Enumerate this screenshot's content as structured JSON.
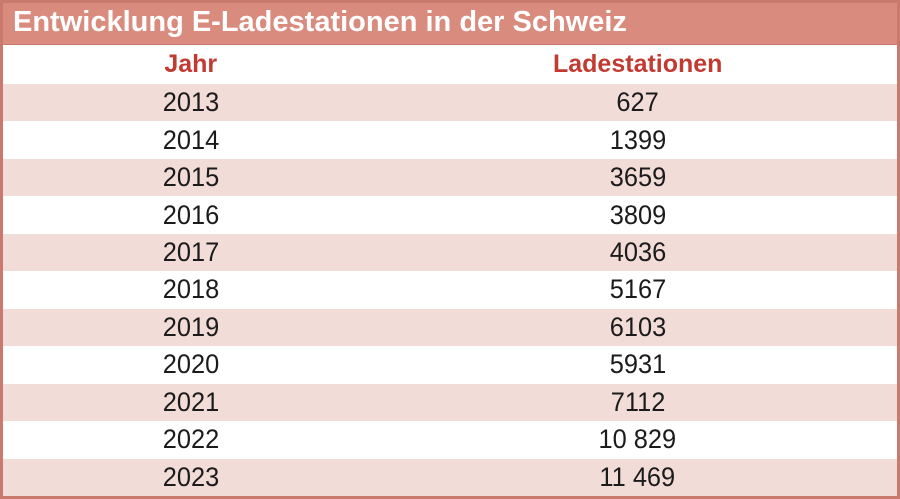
{
  "title_bar": {
    "title": "Entwicklung E-Ladestationen in der Schweiz"
  },
  "table": {
    "headers": {
      "jahr": "Jahr",
      "ladestationen": "Ladestationen"
    },
    "rows": [
      {
        "jahr": "2013",
        "ladestationen": "627"
      },
      {
        "jahr": "2014",
        "ladestationen": "1399"
      },
      {
        "jahr": "2015",
        "ladestationen": "3659"
      },
      {
        "jahr": "2016",
        "ladestationen": "3809"
      },
      {
        "jahr": "2017",
        "ladestationen": "4036"
      },
      {
        "jahr": "2018",
        "ladestationen": "5167"
      },
      {
        "jahr": "2019",
        "ladestationen": "6103"
      },
      {
        "jahr": "2020",
        "ladestationen": "5931"
      },
      {
        "jahr": "2021",
        "ladestationen": "7112"
      },
      {
        "jahr": "2022",
        "ladestationen": "10 829"
      },
      {
        "jahr": "2023",
        "ladestationen": "11 469"
      }
    ]
  },
  "colors": {
    "accent_salmon": "#d98b7e",
    "border_salmon": "#ca7a6d",
    "row_pink": "#f2dcd8",
    "header_text_red": "#c23b33",
    "body_text": "#1b1b1b",
    "title_text": "#ffffff"
  },
  "chart_data": {
    "type": "table",
    "title": "Entwicklung E-Ladestationen in der Schweiz",
    "columns": [
      "Jahr",
      "Ladestationen"
    ],
    "x": [
      2013,
      2014,
      2015,
      2016,
      2017,
      2018,
      2019,
      2020,
      2021,
      2022,
      2023
    ],
    "values": [
      627,
      1399,
      3659,
      3809,
      4036,
      5167,
      6103,
      5931,
      7112,
      10829,
      11469
    ],
    "layout_hints": {
      "row_striping": "alternating pink/white starting pink at first data row",
      "alignment": "both columns center-aligned",
      "legend": "none",
      "grid": "off"
    }
  }
}
